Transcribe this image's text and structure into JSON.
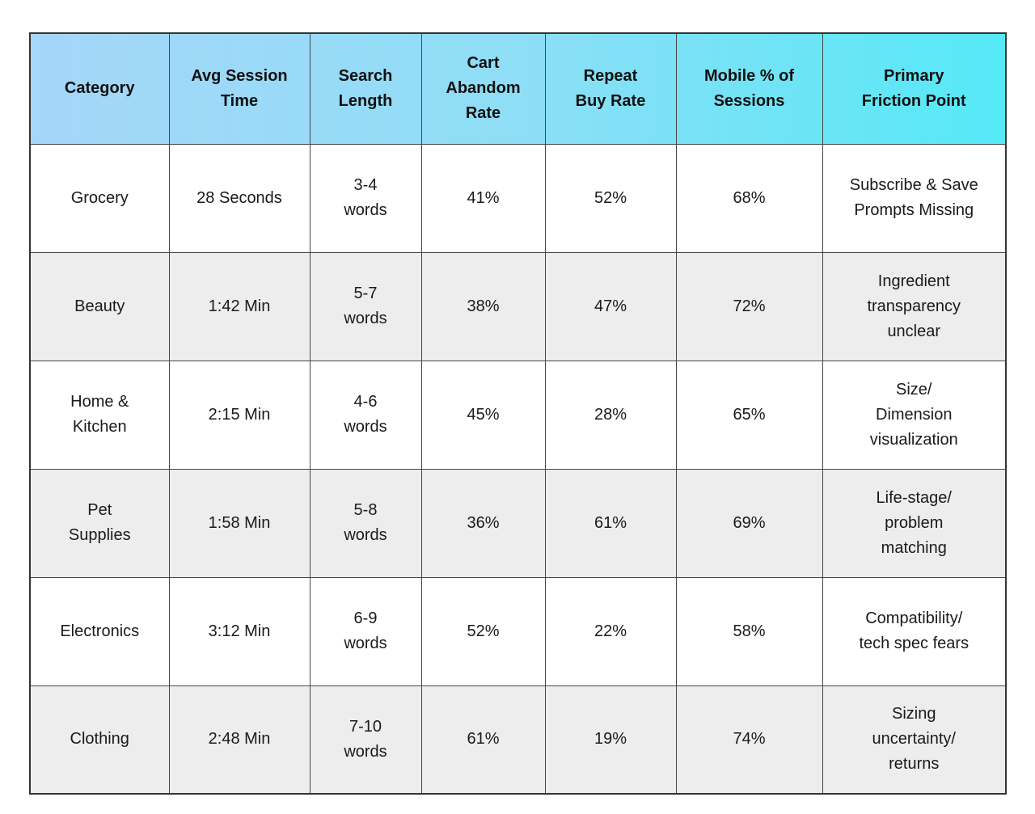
{
  "colors": {
    "header_gradient_start": "#A6D6F9",
    "header_gradient_end": "#55E9F7",
    "row_white": "#FFFFFF",
    "row_gray": "#EDEDED",
    "border": "#454545",
    "text": "#1A1A1A"
  },
  "table": {
    "columns": [
      "Category",
      "Avg Session\nTime",
      "Search\nLength",
      "Cart\nAbandom\nRate",
      "Repeat\nBuy Rate",
      "Mobile % of\nSessions",
      "Primary\nFriction Point"
    ],
    "rows": [
      [
        "Grocery",
        "28 Seconds",
        "3-4\nwords",
        "41%",
        "52%",
        "68%",
        "Subscribe & Save\nPrompts Missing"
      ],
      [
        "Beauty",
        "1:42 Min",
        "5-7\nwords",
        "38%",
        "47%",
        "72%",
        "Ingredient\ntransparency\nunclear"
      ],
      [
        "Home &\nKitchen",
        "2:15 Min",
        "4-6\nwords",
        "45%",
        "28%",
        "65%",
        "Size/\nDimension\nvisualization"
      ],
      [
        "Pet\nSupplies",
        "1:58 Min",
        "5-8\nwords",
        "36%",
        "61%",
        "69%",
        "Life-stage/\nproblem\nmatching"
      ],
      [
        "Electronics",
        "3:12  Min",
        "6-9\nwords",
        "52%",
        "22%",
        "58%",
        "Compatibility/\ntech spec fears"
      ],
      [
        "Clothing",
        "2:48 Min",
        "7-10\nwords",
        "61%",
        "19%",
        "74%",
        "Sizing\nuncertainty/\nreturns"
      ]
    ]
  },
  "chart_data": {
    "type": "table",
    "title": "",
    "columns": [
      "Category",
      "Avg Session Time",
      "Search Length",
      "Cart Abandom Rate",
      "Repeat Buy Rate",
      "Mobile % of Sessions",
      "Primary Friction Point"
    ],
    "rows": [
      [
        "Grocery",
        "28 Seconds",
        "3-4 words",
        "41%",
        "52%",
        "68%",
        "Subscribe & Save Prompts Missing"
      ],
      [
        "Beauty",
        "1:42 Min",
        "5-7 words",
        "38%",
        "47%",
        "72%",
        "Ingredient transparency unclear"
      ],
      [
        "Home & Kitchen",
        "2:15 Min",
        "4-6 words",
        "45%",
        "28%",
        "65%",
        "Size/Dimension visualization"
      ],
      [
        "Pet Supplies",
        "1:58 Min",
        "5-8 words",
        "36%",
        "61%",
        "69%",
        "Life-stage/problem matching"
      ],
      [
        "Electronics",
        "3:12 Min",
        "6-9 words",
        "52%",
        "22%",
        "58%",
        "Compatibility/tech spec fears"
      ],
      [
        "Clothing",
        "2:48 Min",
        "7-10 words",
        "61%",
        "19%",
        "74%",
        "Sizing uncertainty/returns"
      ]
    ],
    "cart_abandon_rate_pct": [
      41,
      38,
      45,
      36,
      52,
      61
    ],
    "repeat_buy_rate_pct": [
      52,
      47,
      28,
      61,
      22,
      19
    ],
    "mobile_pct_of_sessions": [
      68,
      72,
      65,
      69,
      58,
      74
    ]
  }
}
